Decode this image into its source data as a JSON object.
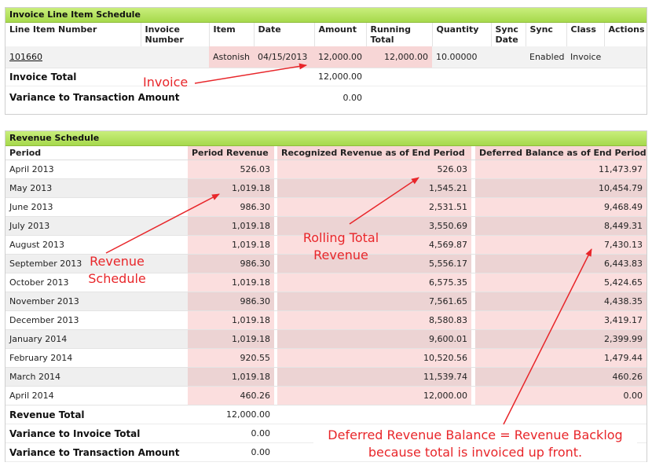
{
  "invoice_panel": {
    "title": "Invoice Line Item Schedule",
    "columns": [
      "Line Item Number",
      "Invoice Number",
      "Item",
      "Date",
      "Amount",
      "Running Total",
      "Quantity",
      "Sync Date",
      "Sync",
      "Class",
      "Actions"
    ],
    "row": {
      "line_item_number": "101660",
      "invoice_number": "",
      "item": "Astonish",
      "date": "04/15/2013",
      "amount": "12,000.00",
      "running_total": "12,000.00",
      "quantity": "10.00000",
      "sync_date": "",
      "sync": "Enabled",
      "class": "Invoice",
      "actions": ""
    },
    "invoice_total_label": "Invoice Total",
    "invoice_total_value": "12,000.00",
    "variance_label": "Variance to Transaction Amount",
    "variance_value": "0.00"
  },
  "revenue_panel": {
    "title": "Revenue Schedule",
    "columns": [
      "Period",
      "Period Revenue",
      "Recognized Revenue as of End Period",
      "Deferred Balance as of End Period"
    ],
    "rows": [
      {
        "period": "April 2013",
        "period_revenue": "526.03",
        "recognized": "526.03",
        "deferred": "11,473.97"
      },
      {
        "period": "May 2013",
        "period_revenue": "1,019.18",
        "recognized": "1,545.21",
        "deferred": "10,454.79"
      },
      {
        "period": "June 2013",
        "period_revenue": "986.30",
        "recognized": "2,531.51",
        "deferred": "9,468.49"
      },
      {
        "period": "July 2013",
        "period_revenue": "1,019.18",
        "recognized": "3,550.69",
        "deferred": "8,449.31"
      },
      {
        "period": "August 2013",
        "period_revenue": "1,019.18",
        "recognized": "4,569.87",
        "deferred": "7,430.13"
      },
      {
        "period": "September 2013",
        "period_revenue": "986.30",
        "recognized": "5,556.17",
        "deferred": "6,443.83"
      },
      {
        "period": "October 2013",
        "period_revenue": "1,019.18",
        "recognized": "6,575.35",
        "deferred": "5,424.65"
      },
      {
        "period": "November 2013",
        "period_revenue": "986.30",
        "recognized": "7,561.65",
        "deferred": "4,438.35"
      },
      {
        "period": "December 2013",
        "period_revenue": "1,019.18",
        "recognized": "8,580.83",
        "deferred": "3,419.17"
      },
      {
        "period": "January 2014",
        "period_revenue": "1,019.18",
        "recognized": "9,600.01",
        "deferred": "2,399.99"
      },
      {
        "period": "February 2014",
        "period_revenue": "920.55",
        "recognized": "10,520.56",
        "deferred": "1,479.44"
      },
      {
        "period": "March 2014",
        "period_revenue": "1,019.18",
        "recognized": "11,539.74",
        "deferred": "460.26"
      },
      {
        "period": "April 2014",
        "period_revenue": "460.26",
        "recognized": "12,000.00",
        "deferred": "0.00"
      }
    ],
    "summary": [
      {
        "label": "Revenue Total",
        "value": "12,000.00"
      },
      {
        "label": "Variance to Invoice Total",
        "value": "0.00"
      },
      {
        "label": "Variance to Transaction Amount",
        "value": "0.00"
      }
    ]
  },
  "annotations": {
    "invoice": "Invoice",
    "revenue_schedule": [
      "Revenue",
      "Schedule"
    ],
    "rolling_total": [
      "Rolling Total",
      "Revenue"
    ],
    "deferred": [
      "Deferred Revenue Balance = Revenue Backlog",
      "because total is invoiced up front."
    ],
    "color": "#e8262a"
  },
  "colors": {
    "header_green": "#a6d94c",
    "highlight_pink": "#f7d6d6"
  }
}
